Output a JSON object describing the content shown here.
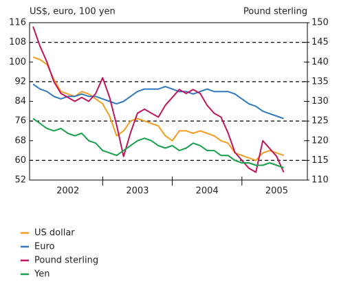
{
  "chart_data": {
    "type": "line",
    "y_axis_label": "US$, euro, 100 yen",
    "y2_axis_label": "Pound sterling",
    "x": [
      2002.0,
      2002.1,
      2002.2,
      2002.3,
      2002.4,
      2002.5,
      2002.6,
      2002.7,
      2002.8,
      2002.9,
      2003.0,
      2003.1,
      2003.2,
      2003.3,
      2003.4,
      2003.5,
      2003.6,
      2003.7,
      2003.8,
      2003.9,
      2004.0,
      2004.1,
      2004.2,
      2004.3,
      2004.4,
      2004.5,
      2004.6,
      2004.7,
      2004.8,
      2004.9,
      2005.0,
      2005.1,
      2005.2,
      2005.3,
      2005.4,
      2005.5,
      2005.6
    ],
    "xlim": [
      2001.95,
      2005.94
    ],
    "xticks": [
      {
        "value": 2002.5,
        "label": "2002"
      },
      {
        "value": 2003.5,
        "label": "2003"
      },
      {
        "value": 2004.5,
        "label": "2004"
      },
      {
        "value": 2005.5,
        "label": "2005"
      }
    ],
    "ylim": [
      52,
      116
    ],
    "yticks": [
      52,
      60,
      68,
      76,
      84,
      92,
      100,
      108,
      116
    ],
    "y2lim": [
      110,
      150
    ],
    "y2ticks": [
      110,
      115,
      120,
      125,
      130,
      135,
      140,
      145,
      150
    ],
    "grid": true,
    "series": [
      {
        "name": "US dollar",
        "color": "#f39c1f",
        "values": [
          102,
          101,
          99,
          93,
          88,
          87,
          86,
          88,
          87,
          85,
          83,
          78,
          70,
          72,
          76,
          77,
          76,
          75,
          74,
          70,
          68,
          72,
          72,
          71,
          72,
          71,
          70,
          68,
          67,
          63,
          62,
          61,
          60,
          63,
          64,
          63,
          62
        ]
      },
      {
        "name": "Euro",
        "color": "#2f78bd",
        "values": [
          91,
          89,
          88,
          86,
          85,
          86,
          86,
          87,
          86,
          86,
          85,
          84,
          83,
          84,
          86,
          88,
          89,
          89,
          89,
          90,
          89,
          88,
          88,
          87,
          88,
          89,
          88,
          88,
          88,
          87,
          85,
          83,
          82,
          80,
          79,
          78,
          77
        ]
      },
      {
        "name": "Pound sterling",
        "color": "#c0135d",
        "axis": "y2",
        "values": [
          149,
          144,
          140,
          135,
          132,
          131,
          130,
          131,
          130,
          132,
          136,
          131,
          124,
          116,
          122,
          127,
          128,
          127,
          126,
          129,
          131,
          133,
          132,
          133,
          132,
          129,
          127,
          126,
          122,
          117,
          115,
          113,
          112,
          120,
          118,
          116,
          112
        ]
      },
      {
        "name": "Yen",
        "color": "#16a04a",
        "values": [
          77,
          75,
          73,
          72,
          73,
          71,
          70,
          71,
          68,
          67,
          64,
          63,
          62,
          64,
          66,
          68,
          69,
          68,
          66,
          65,
          66,
          64,
          65,
          67,
          66,
          64,
          64,
          62,
          62,
          60,
          59,
          59,
          58,
          58,
          59,
          58,
          57
        ]
      }
    ]
  }
}
